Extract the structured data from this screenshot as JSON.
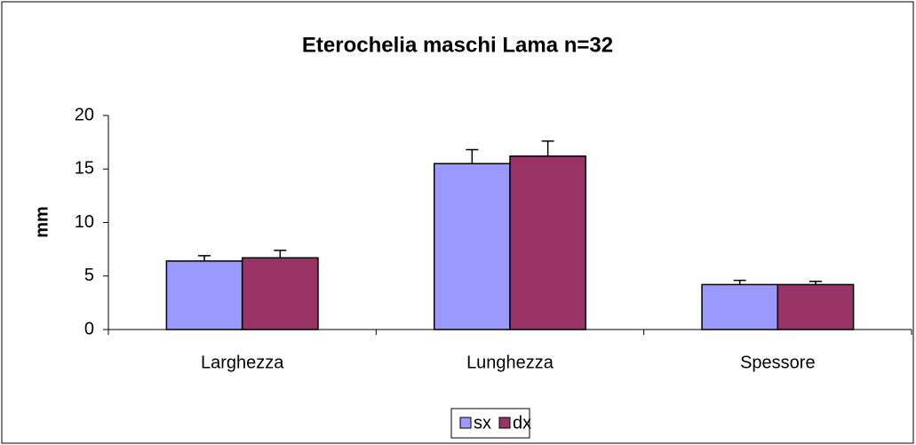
{
  "chart_data": {
    "type": "bar",
    "title": "Eterochelia maschi Lama n=32",
    "y_label": "mm",
    "categories": [
      "Larghezza",
      "Lunghezza",
      "Spessore"
    ],
    "series": [
      {
        "name": "sx",
        "color": "#9999ff",
        "values": [
          6.4,
          15.5,
          4.2
        ],
        "errors": [
          0.5,
          1.3,
          0.4
        ]
      },
      {
        "name": "dx",
        "color": "#993366",
        "values": [
          6.7,
          16.2,
          4.2
        ],
        "errors": [
          0.7,
          1.4,
          0.3
        ]
      }
    ],
    "ylim": [
      0,
      20
    ],
    "yticks": [
      0,
      5,
      10,
      15,
      20
    ],
    "grid": false,
    "legend": "bottom"
  }
}
